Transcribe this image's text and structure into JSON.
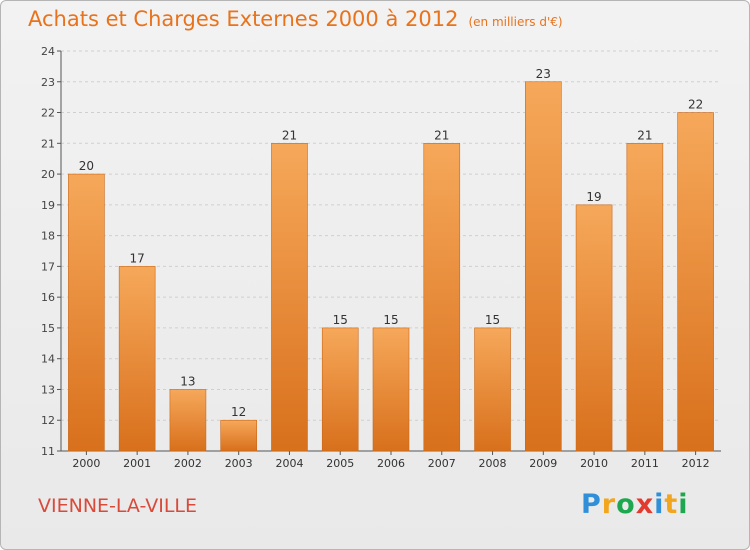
{
  "header": {
    "title": "Achats et Charges Externes 2000 à 2012",
    "subtitle": "(en milliers d'€)"
  },
  "footer": {
    "town": "VIENNE-LA-VILLE",
    "brand": {
      "parts": [
        "P",
        "r",
        "o",
        "x",
        "i",
        "t",
        "i"
      ]
    }
  },
  "colors": {
    "bar_top": "#f6a85a",
    "bar_bottom": "#d8701c",
    "title": "#e8731c",
    "town": "#d94a3a"
  },
  "chart_data": {
    "type": "bar",
    "categories": [
      "2000",
      "2001",
      "2002",
      "2003",
      "2004",
      "2005",
      "2006",
      "2007",
      "2008",
      "2009",
      "2010",
      "2011",
      "2012"
    ],
    "values": [
      20,
      17,
      13,
      12,
      21,
      15,
      15,
      21,
      15,
      23,
      19,
      21,
      22
    ],
    "title": "Achats et Charges Externes 2000 à 2012",
    "subtitle": "(en milliers d'€)",
    "ylim": [
      11,
      24
    ],
    "yticks": [
      11,
      12,
      13,
      14,
      15,
      16,
      17,
      18,
      19,
      20,
      21,
      22,
      23,
      24
    ],
    "grid": true,
    "legend": "none"
  }
}
